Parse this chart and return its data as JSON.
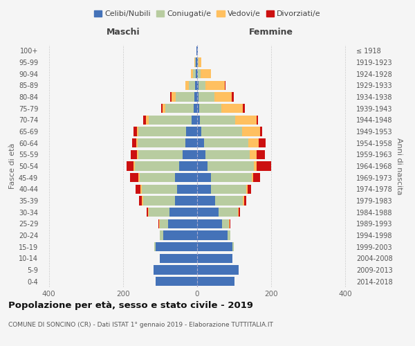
{
  "age_groups": [
    "0-4",
    "5-9",
    "10-14",
    "15-19",
    "20-24",
    "25-29",
    "30-34",
    "35-39",
    "40-44",
    "45-49",
    "50-54",
    "55-59",
    "60-64",
    "65-69",
    "70-74",
    "75-79",
    "80-84",
    "85-89",
    "90-94",
    "95-99",
    "100+"
  ],
  "birth_years": [
    "2014-2018",
    "2009-2013",
    "2004-2008",
    "1999-2003",
    "1994-1998",
    "1989-1993",
    "1984-1988",
    "1979-1983",
    "1974-1978",
    "1969-1973",
    "1964-1968",
    "1959-1963",
    "1954-1958",
    "1949-1953",
    "1944-1948",
    "1939-1943",
    "1934-1938",
    "1929-1933",
    "1924-1928",
    "1919-1923",
    "≤ 1918"
  ],
  "maschi_celibi": [
    112,
    118,
    100,
    112,
    92,
    78,
    75,
    60,
    55,
    60,
    48,
    40,
    32,
    30,
    15,
    10,
    8,
    5,
    4,
    3,
    2
  ],
  "maschi_coniugati": [
    0,
    0,
    0,
    3,
    8,
    22,
    55,
    85,
    95,
    95,
    120,
    118,
    128,
    128,
    115,
    75,
    50,
    18,
    8,
    2,
    0
  ],
  "maschi_vedovi": [
    0,
    0,
    0,
    0,
    0,
    2,
    2,
    4,
    4,
    4,
    4,
    4,
    4,
    4,
    8,
    8,
    12,
    8,
    4,
    2,
    0
  ],
  "maschi_divorziati": [
    0,
    0,
    0,
    0,
    0,
    2,
    4,
    8,
    12,
    22,
    18,
    18,
    12,
    10,
    8,
    4,
    2,
    0,
    0,
    0,
    0
  ],
  "femmine_nubili": [
    100,
    112,
    95,
    95,
    82,
    68,
    58,
    48,
    38,
    38,
    28,
    22,
    18,
    12,
    8,
    6,
    4,
    4,
    2,
    2,
    2
  ],
  "femmine_coniugate": [
    0,
    0,
    0,
    4,
    8,
    18,
    52,
    75,
    95,
    110,
    125,
    120,
    120,
    110,
    95,
    60,
    42,
    18,
    8,
    2,
    0
  ],
  "femmine_vedove": [
    0,
    0,
    0,
    0,
    0,
    2,
    2,
    4,
    4,
    4,
    8,
    18,
    28,
    48,
    58,
    58,
    48,
    52,
    28,
    8,
    0
  ],
  "femmine_divorziate": [
    0,
    0,
    0,
    0,
    0,
    2,
    4,
    6,
    8,
    18,
    38,
    22,
    18,
    6,
    4,
    4,
    4,
    2,
    0,
    0,
    0
  ],
  "colors": {
    "celibi": "#4472b8",
    "coniugati": "#b8cca0",
    "vedovi": "#ffc060",
    "divorziati": "#cc1010"
  },
  "title": "Popolazione per età, sesso e stato civile - 2019",
  "subtitle": "COMUNE DI SONCINO (CR) - Dati ISTAT 1° gennaio 2019 - Elaborazione TUTTITALIA.IT",
  "xlabel_left": "Maschi",
  "xlabel_right": "Femmine",
  "ylabel_left": "Fasce di età",
  "ylabel_right": "Anni di nascita",
  "xlim": 420,
  "legend_labels": [
    "Celibi/Nubili",
    "Coniugati/e",
    "Vedovi/e",
    "Divorziati/e"
  ],
  "bg_color": "#f5f5f5",
  "grid_color": "#cccccc"
}
